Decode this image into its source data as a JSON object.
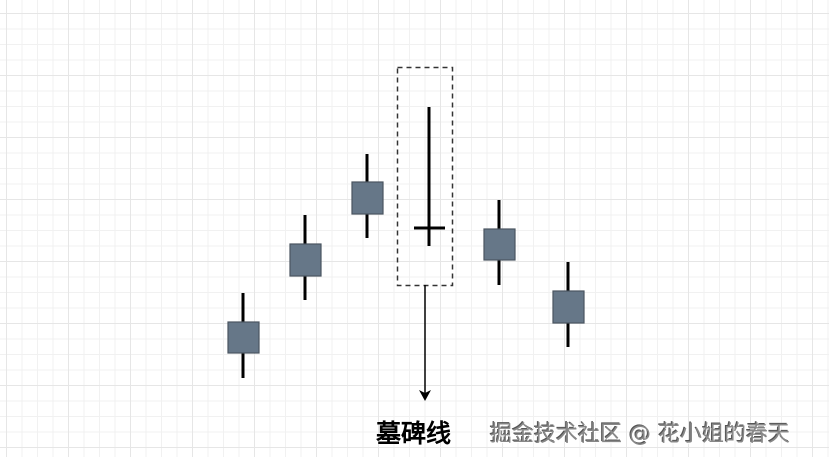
{
  "diagram": {
    "label": "墓碑线",
    "watermark": "掘金技术社区 @ 花小姐的春天",
    "colors": {
      "body_fill": "#667788",
      "body_stroke": "#4a5560",
      "wick": "#000000",
      "dash_box": "#333333"
    }
  }
}
